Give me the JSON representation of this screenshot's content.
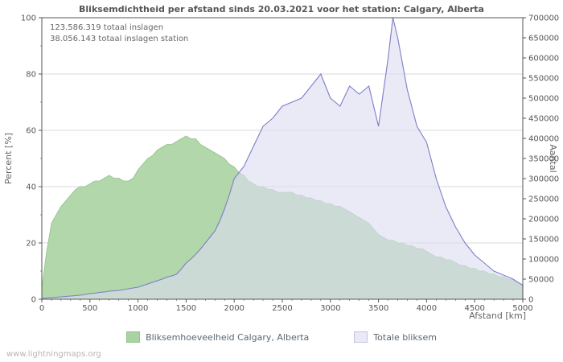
{
  "title": "Bliksemdichtheid per afstand sinds 20.03.2021 voor het station: Calgary, Alberta",
  "annotations": {
    "line1": "123.586.319 totaal inslagen",
    "line2": "38.056.143 totaal inslagen station"
  },
  "watermark": "www.lightningmaps.org",
  "axes": {
    "left_label": "Percent   [%]",
    "right_label": "Aantal",
    "x_label": "Afstand   [km]",
    "x_ticks": [
      "0",
      "500",
      "1000",
      "1500",
      "2000",
      "2500",
      "3000",
      "3500",
      "4000",
      "4500",
      "5000"
    ],
    "left_ticks": [
      "0",
      "20",
      "40",
      "60",
      "80",
      "100"
    ],
    "right_ticks": [
      "0",
      "50000",
      "100000",
      "150000",
      "200000",
      "250000",
      "300000",
      "350000",
      "400000",
      "450000",
      "500000",
      "550000",
      "600000",
      "650000",
      "700000"
    ]
  },
  "legend": [
    {
      "label": "Bliksemhoeveelheid Calgary, Alberta",
      "color": "#a9d3a2",
      "border": "#94c28c"
    },
    {
      "label": "Totale bliksem",
      "color": "#e9e9f8",
      "border": "#c3c3e0"
    }
  ],
  "colors": {
    "green_fill": "#a9d3a2",
    "green_stroke": "#93c28b",
    "total_fill": "#dcdcf2",
    "total_stroke": "#7d7dc8",
    "grid": "#d9d9d9",
    "frame": "#555555"
  },
  "chart_data": {
    "type": "area",
    "title": "Bliksemdichtheid per afstand sinds 20.03.2021 voor het station: Calgary, Alberta",
    "xlabel": "Afstand [km]",
    "ylabel_left": "Percent [%]",
    "ylabel_right": "Aantal",
    "xlim": [
      0,
      5000
    ],
    "ylim_left": [
      0,
      100
    ],
    "ylim_right": [
      0,
      700000
    ],
    "grid": "horizontal",
    "legend_position": "bottom",
    "x": [
      0,
      50,
      100,
      150,
      200,
      250,
      300,
      350,
      400,
      450,
      500,
      550,
      600,
      650,
      700,
      750,
      800,
      850,
      900,
      950,
      1000,
      1050,
      1100,
      1150,
      1200,
      1250,
      1300,
      1350,
      1400,
      1450,
      1500,
      1550,
      1600,
      1650,
      1700,
      1750,
      1800,
      1850,
      1900,
      1950,
      2000,
      2050,
      2100,
      2150,
      2200,
      2250,
      2300,
      2350,
      2400,
      2450,
      2500,
      2550,
      2600,
      2650,
      2700,
      2750,
      2800,
      2850,
      2900,
      2950,
      3000,
      3050,
      3100,
      3150,
      3200,
      3250,
      3300,
      3350,
      3400,
      3450,
      3500,
      3550,
      3600,
      3650,
      3700,
      3750,
      3800,
      3850,
      3900,
      3950,
      4000,
      4050,
      4100,
      4150,
      4200,
      4250,
      4300,
      4350,
      4400,
      4450,
      4500,
      4550,
      4600,
      4650,
      4700,
      4750,
      4800,
      4850,
      4900,
      4950,
      5000
    ],
    "series": [
      {
        "name": "Bliksemhoeveelheid Calgary, Alberta",
        "axis": "left",
        "unit": "percent",
        "values": [
          4,
          17,
          27,
          30,
          33,
          35,
          37,
          39,
          40,
          40,
          41,
          42,
          42,
          43,
          44,
          43,
          43,
          42,
          42,
          43,
          46,
          48,
          50,
          51,
          53,
          54,
          55,
          55,
          56,
          57,
          58,
          57,
          57,
          55,
          54,
          53,
          52,
          51,
          50,
          48,
          47,
          45,
          44,
          42,
          41,
          40,
          40,
          39,
          39,
          38,
          38,
          38,
          38,
          37,
          37,
          36,
          36,
          35,
          35,
          34,
          34,
          33,
          33,
          32,
          31,
          30,
          29,
          28,
          27,
          25,
          23,
          22,
          21,
          21,
          20,
          20,
          19,
          19,
          18,
          18,
          17,
          16,
          15,
          15,
          14,
          14,
          13,
          12,
          12,
          11,
          11,
          10,
          10,
          9,
          9,
          8,
          8,
          7,
          7,
          6,
          5
        ]
      },
      {
        "name": "Totale bliksem",
        "axis": "right",
        "unit": "count",
        "values": [
          2000,
          3000,
          4000,
          5000,
          6000,
          7000,
          8000,
          9000,
          10000,
          12000,
          14000,
          15000,
          17000,
          18000,
          20000,
          21000,
          22000,
          24000,
          26000,
          28000,
          30000,
          34000,
          38000,
          42000,
          46000,
          50000,
          55000,
          58000,
          62000,
          75000,
          90000,
          100000,
          112000,
          125000,
          140000,
          155000,
          170000,
          195000,
          225000,
          260000,
          300000,
          315000,
          330000,
          355000,
          380000,
          405000,
          430000,
          440000,
          450000,
          465000,
          480000,
          485000,
          490000,
          495000,
          500000,
          515000,
          530000,
          545000,
          560000,
          530000,
          500000,
          490000,
          480000,
          505000,
          530000,
          520000,
          510000,
          520000,
          530000,
          480000,
          430000,
          515000,
          600000,
          700000,
          650000,
          585000,
          520000,
          475000,
          430000,
          410000,
          390000,
          345000,
          300000,
          265000,
          230000,
          205000,
          180000,
          160000,
          140000,
          125000,
          110000,
          100000,
          90000,
          80000,
          70000,
          65000,
          60000,
          55000,
          50000,
          42000,
          35000
        ]
      }
    ]
  }
}
